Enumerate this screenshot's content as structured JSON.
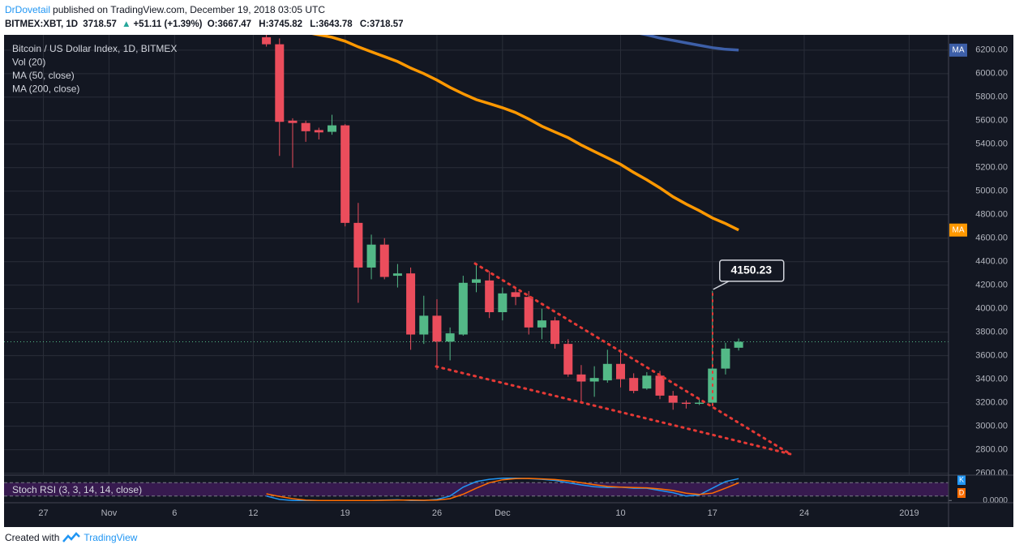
{
  "header": {
    "author": "DrDovetail",
    "published": "published on TradingView.com, December 19, 2018 03:05 UTC",
    "symbol": "BITMEX:XBT, 1D",
    "change": "+51.11 (+1.39%)",
    "ohlc_labels": [
      "O:",
      "H:",
      "L:",
      "C:"
    ]
  },
  "footer": {
    "created": "Created with",
    "brand": "TradingView"
  },
  "chart_data": [
    {
      "type": "candlestick",
      "title": "Bitcoin / US Dollar Index, 1D, BITMEX",
      "volume_label": "Vol (20)",
      "x": [
        "2018-11-13",
        "2018-11-14",
        "2018-11-15",
        "2018-11-16",
        "2018-11-17",
        "2018-11-18",
        "2018-11-19",
        "2018-11-20",
        "2018-11-21",
        "2018-11-22",
        "2018-11-23",
        "2018-11-24",
        "2018-11-25",
        "2018-11-26",
        "2018-11-27",
        "2018-11-28",
        "2018-11-29",
        "2018-11-30",
        "2018-12-01",
        "2018-12-02",
        "2018-12-03",
        "2018-12-04",
        "2018-12-05",
        "2018-12-06",
        "2018-12-07",
        "2018-12-08",
        "2018-12-09",
        "2018-12-10",
        "2018-12-11",
        "2018-12-12",
        "2018-12-13",
        "2018-12-14",
        "2018-12-15",
        "2018-12-16",
        "2018-12-17",
        "2018-12-18",
        "2018-12-19"
      ],
      "open": [
        6310,
        6250,
        5600,
        5580,
        5520,
        5505,
        5560,
        4730,
        4350,
        4545,
        4280,
        4300,
        3780,
        3940,
        3720,
        3780,
        4220,
        4240,
        3970,
        4140,
        4100,
        3840,
        3900,
        3700,
        3440,
        3380,
        3390,
        3530,
        3410,
        3320,
        3430,
        3260,
        3200,
        3190,
        3200,
        3490,
        3667.47
      ],
      "high": [
        6330,
        6300,
        5620,
        5600,
        5540,
        5650,
        5570,
        4900,
        4630,
        4600,
        4380,
        4350,
        4110,
        4080,
        3840,
        4280,
        4380,
        4320,
        4180,
        4170,
        4150,
        4000,
        3930,
        3740,
        3520,
        3510,
        3650,
        3650,
        3450,
        3460,
        3470,
        3300,
        3220,
        3240,
        4150.23,
        3710,
        3745.82
      ],
      "low": [
        6230,
        5300,
        5200,
        5420,
        5440,
        5480,
        4700,
        4050,
        4250,
        4250,
        4180,
        3650,
        3700,
        3480,
        3560,
        3770,
        4140,
        3920,
        3900,
        4030,
        3780,
        3740,
        3660,
        3420,
        3200,
        3250,
        3370,
        3330,
        3280,
        3310,
        3230,
        3140,
        3150,
        3180,
        3180,
        3440,
        3643.78
      ],
      "close": [
        6250,
        5590,
        5580,
        5510,
        5500,
        5560,
        4730,
        4350,
        4545,
        4270,
        4300,
        3780,
        3940,
        3720,
        3790,
        4220,
        4250,
        3970,
        4130,
        4100,
        3840,
        3900,
        3700,
        3440,
        3380,
        3410,
        3530,
        3400,
        3300,
        3430,
        3260,
        3200,
        3190,
        3200,
        3490,
        3660,
        3718.57
      ],
      "up_color": "#53b987",
      "down_color": "#eb4d5c",
      "overlays": [
        {
          "name": "MA (50, close)",
          "tag": "MA",
          "color": "#ff9800",
          "values": [
            6420,
            6393,
            6372,
            6352,
            6331,
            6310,
            6276,
            6228,
            6186,
            6145,
            6103,
            6048,
            6000,
            5945,
            5883,
            5828,
            5779,
            5745,
            5710,
            5669,
            5614,
            5552,
            5503,
            5455,
            5393,
            5338,
            5283,
            5228,
            5159,
            5097,
            5028,
            4952,
            4890,
            4834,
            4772,
            4724,
            4669
          ]
        },
        {
          "name": "MA (200, close)",
          "tag": "MA",
          "color": "#3d5fa8",
          "values": [
            null,
            null,
            null,
            null,
            null,
            null,
            null,
            null,
            null,
            null,
            null,
            null,
            null,
            null,
            null,
            null,
            null,
            null,
            null,
            null,
            null,
            null,
            null,
            null,
            6435,
            6414,
            6393,
            6372,
            6352,
            6331,
            6303,
            6283,
            6262,
            6241,
            6221,
            6207,
            6200
          ]
        }
      ],
      "xlim": [
        "2018-10-24",
        "2019-01-04"
      ],
      "xticks": [
        {
          "value": "2018-10-27",
          "label": "27"
        },
        {
          "value": "2018-11-01",
          "label": "Nov"
        },
        {
          "value": "2018-11-06",
          "label": "6"
        },
        {
          "value": "2018-11-12",
          "label": "12"
        },
        {
          "value": "2018-11-19",
          "label": "19"
        },
        {
          "value": "2018-11-26",
          "label": "26"
        },
        {
          "value": "2018-12-01",
          "label": "Dec"
        },
        {
          "value": "2018-12-10",
          "label": "10"
        },
        {
          "value": "2018-12-17",
          "label": "17"
        },
        {
          "value": "2018-12-24",
          "label": "24"
        },
        {
          "value": "2019-01-01",
          "label": "2019"
        }
      ],
      "ylim": [
        2590,
        6330
      ],
      "yticks": [
        {
          "value": 2600,
          "label": "2600.00"
        },
        {
          "value": 2800,
          "label": "2800.00"
        },
        {
          "value": 3000,
          "label": "3000.00"
        },
        {
          "value": 3200,
          "label": "3200.00"
        },
        {
          "value": 3400,
          "label": "3400.00"
        },
        {
          "value": 3600,
          "label": "3600.00"
        },
        {
          "value": 3800,
          "label": "3800.00"
        },
        {
          "value": 4000,
          "label": "4000.00"
        },
        {
          "value": 4200,
          "label": "4200.00"
        },
        {
          "value": 4400,
          "label": "4400.00"
        },
        {
          "value": 4600,
          "label": "4600.00"
        },
        {
          "value": 4800,
          "label": "4800.00"
        },
        {
          "value": 5000,
          "label": "5000.00"
        },
        {
          "value": 5200,
          "label": "5200.00"
        },
        {
          "value": 5400,
          "label": "5400.00"
        },
        {
          "value": 5600,
          "label": "5600.00"
        },
        {
          "value": 5800,
          "label": "5800.00"
        },
        {
          "value": 6000,
          "label": "6000.00"
        },
        {
          "value": 6200,
          "label": "6200.00"
        }
      ],
      "grid": true
    },
    {
      "type": "line",
      "title": "Stoch RSI (3, 3, 14, 14, close)",
      "x": [
        "2018-11-13",
        "2018-11-14",
        "2018-11-15",
        "2018-11-16",
        "2018-11-17",
        "2018-11-18",
        "2018-11-19",
        "2018-11-20",
        "2018-11-21",
        "2018-11-22",
        "2018-11-23",
        "2018-11-24",
        "2018-11-25",
        "2018-11-26",
        "2018-11-27",
        "2018-11-28",
        "2018-11-29",
        "2018-11-30",
        "2018-12-01",
        "2018-12-02",
        "2018-12-03",
        "2018-12-04",
        "2018-12-05",
        "2018-12-06",
        "2018-12-07",
        "2018-12-08",
        "2018-12-09",
        "2018-12-10",
        "2018-12-11",
        "2018-12-12",
        "2018-12-13",
        "2018-12-14",
        "2018-12-15",
        "2018-12-16",
        "2018-12-17",
        "2018-12-18",
        "2018-12-19"
      ],
      "series": [
        {
          "name": "K",
          "color": "#2196f3",
          "values": [
            20,
            5,
            0,
            0,
            0,
            0,
            0,
            0,
            0,
            2,
            3,
            0,
            0,
            5,
            20,
            60,
            85,
            95,
            100,
            100,
            98,
            95,
            90,
            80,
            70,
            62,
            58,
            60,
            55,
            55,
            45,
            35,
            20,
            25,
            55,
            85,
            98
          ]
        },
        {
          "name": "D",
          "color": "#ff6d00",
          "values": [
            30,
            18,
            8,
            2,
            0,
            0,
            0,
            0,
            0,
            1,
            2,
            2,
            1,
            2,
            8,
            28,
            55,
            80,
            93,
            98,
            99,
            97,
            94,
            88,
            80,
            71,
            63,
            60,
            58,
            57,
            52,
            45,
            33,
            27,
            33,
            55,
            79
          ]
        }
      ],
      "band": [
        20,
        80
      ],
      "band_color": "#7b1fa2",
      "xlim": [
        "2018-10-24",
        "2019-01-04"
      ],
      "ylim": [
        -10,
        110
      ],
      "yticks": [
        {
          "value": 0,
          "label": "0.0000"
        }
      ]
    }
  ]
}
